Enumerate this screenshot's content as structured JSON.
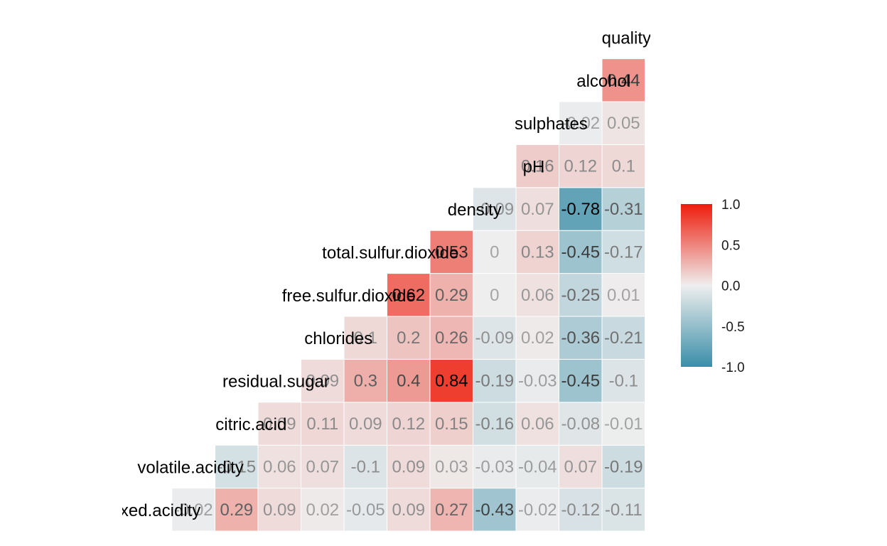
{
  "chart_data": {
    "type": "heatmap",
    "variables": [
      "fixed.acidity",
      "volatile.acidity",
      "citric.acid",
      "residual.sugar",
      "chlorides",
      "free.sulfur.dioxide",
      "total.sulfur.dioxide",
      "density",
      "pH",
      "sulphates",
      "alcohol",
      "quality"
    ],
    "cells": [
      {
        "row": "fixed.acidity",
        "col": "volatile.acidity",
        "value": -0.02,
        "label": "-0.02"
      },
      {
        "row": "fixed.acidity",
        "col": "citric.acid",
        "value": 0.29,
        "label": "0.29"
      },
      {
        "row": "fixed.acidity",
        "col": "residual.sugar",
        "value": 0.09,
        "label": "0.09"
      },
      {
        "row": "fixed.acidity",
        "col": "chlorides",
        "value": 0.02,
        "label": "0.02"
      },
      {
        "row": "fixed.acidity",
        "col": "free.sulfur.dioxide",
        "value": -0.05,
        "label": "-0.05"
      },
      {
        "row": "fixed.acidity",
        "col": "total.sulfur.dioxide",
        "value": 0.09,
        "label": "0.09"
      },
      {
        "row": "fixed.acidity",
        "col": "density",
        "value": 0.27,
        "label": "0.27"
      },
      {
        "row": "fixed.acidity",
        "col": "pH",
        "value": -0.43,
        "label": "-0.43"
      },
      {
        "row": "fixed.acidity",
        "col": "sulphates",
        "value": -0.02,
        "label": "-0.02"
      },
      {
        "row": "fixed.acidity",
        "col": "alcohol",
        "value": -0.12,
        "label": "-0.12"
      },
      {
        "row": "fixed.acidity",
        "col": "quality",
        "value": -0.11,
        "label": "-0.11"
      },
      {
        "row": "volatile.acidity",
        "col": "citric.acid",
        "value": -0.15,
        "label": "-0.15"
      },
      {
        "row": "volatile.acidity",
        "col": "residual.sugar",
        "value": 0.06,
        "label": "0.06"
      },
      {
        "row": "volatile.acidity",
        "col": "chlorides",
        "value": 0.07,
        "label": "0.07"
      },
      {
        "row": "volatile.acidity",
        "col": "free.sulfur.dioxide",
        "value": -0.1,
        "label": "-0.1"
      },
      {
        "row": "volatile.acidity",
        "col": "total.sulfur.dioxide",
        "value": 0.09,
        "label": "0.09"
      },
      {
        "row": "volatile.acidity",
        "col": "density",
        "value": 0.03,
        "label": "0.03"
      },
      {
        "row": "volatile.acidity",
        "col": "pH",
        "value": -0.03,
        "label": "-0.03"
      },
      {
        "row": "volatile.acidity",
        "col": "sulphates",
        "value": -0.04,
        "label": "-0.04"
      },
      {
        "row": "volatile.acidity",
        "col": "alcohol",
        "value": 0.07,
        "label": "0.07"
      },
      {
        "row": "volatile.acidity",
        "col": "quality",
        "value": -0.19,
        "label": "-0.19"
      },
      {
        "row": "citric.acid",
        "col": "residual.sugar",
        "value": 0.09,
        "label": "0.09"
      },
      {
        "row": "citric.acid",
        "col": "chlorides",
        "value": 0.11,
        "label": "0.11"
      },
      {
        "row": "citric.acid",
        "col": "free.sulfur.dioxide",
        "value": 0.09,
        "label": "0.09"
      },
      {
        "row": "citric.acid",
        "col": "total.sulfur.dioxide",
        "value": 0.12,
        "label": "0.12"
      },
      {
        "row": "citric.acid",
        "col": "density",
        "value": 0.15,
        "label": "0.15"
      },
      {
        "row": "citric.acid",
        "col": "pH",
        "value": -0.16,
        "label": "-0.16"
      },
      {
        "row": "citric.acid",
        "col": "sulphates",
        "value": 0.06,
        "label": "0.06"
      },
      {
        "row": "citric.acid",
        "col": "alcohol",
        "value": -0.08,
        "label": "-0.08"
      },
      {
        "row": "citric.acid",
        "col": "quality",
        "value": -0.01,
        "label": "-0.01"
      },
      {
        "row": "residual.sugar",
        "col": "chlorides",
        "value": 0.09,
        "label": "0.09"
      },
      {
        "row": "residual.sugar",
        "col": "free.sulfur.dioxide",
        "value": 0.3,
        "label": "0.3"
      },
      {
        "row": "residual.sugar",
        "col": "total.sulfur.dioxide",
        "value": 0.4,
        "label": "0.4"
      },
      {
        "row": "residual.sugar",
        "col": "density",
        "value": 0.84,
        "label": "0.84"
      },
      {
        "row": "residual.sugar",
        "col": "pH",
        "value": -0.19,
        "label": "-0.19"
      },
      {
        "row": "residual.sugar",
        "col": "sulphates",
        "value": -0.03,
        "label": "-0.03"
      },
      {
        "row": "residual.sugar",
        "col": "alcohol",
        "value": -0.45,
        "label": "-0.45"
      },
      {
        "row": "residual.sugar",
        "col": "quality",
        "value": -0.1,
        "label": "-0.1"
      },
      {
        "row": "chlorides",
        "col": "free.sulfur.dioxide",
        "value": 0.1,
        "label": "0.1"
      },
      {
        "row": "chlorides",
        "col": "total.sulfur.dioxide",
        "value": 0.2,
        "label": "0.2"
      },
      {
        "row": "chlorides",
        "col": "density",
        "value": 0.26,
        "label": "0.26"
      },
      {
        "row": "chlorides",
        "col": "pH",
        "value": -0.09,
        "label": "-0.09"
      },
      {
        "row": "chlorides",
        "col": "sulphates",
        "value": 0.02,
        "label": "0.02"
      },
      {
        "row": "chlorides",
        "col": "alcohol",
        "value": -0.36,
        "label": "-0.36"
      },
      {
        "row": "chlorides",
        "col": "quality",
        "value": -0.21,
        "label": "-0.21"
      },
      {
        "row": "free.sulfur.dioxide",
        "col": "total.sulfur.dioxide",
        "value": 0.62,
        "label": "0.62"
      },
      {
        "row": "free.sulfur.dioxide",
        "col": "density",
        "value": 0.29,
        "label": "0.29"
      },
      {
        "row": "free.sulfur.dioxide",
        "col": "pH",
        "value": 0,
        "label": "0"
      },
      {
        "row": "free.sulfur.dioxide",
        "col": "sulphates",
        "value": 0.06,
        "label": "0.06"
      },
      {
        "row": "free.sulfur.dioxide",
        "col": "alcohol",
        "value": -0.25,
        "label": "-0.25"
      },
      {
        "row": "free.sulfur.dioxide",
        "col": "quality",
        "value": 0.01,
        "label": "0.01"
      },
      {
        "row": "total.sulfur.dioxide",
        "col": "density",
        "value": 0.53,
        "label": "0.53"
      },
      {
        "row": "total.sulfur.dioxide",
        "col": "pH",
        "value": 0,
        "label": "0"
      },
      {
        "row": "total.sulfur.dioxide",
        "col": "sulphates",
        "value": 0.13,
        "label": "0.13"
      },
      {
        "row": "total.sulfur.dioxide",
        "col": "alcohol",
        "value": -0.45,
        "label": "-0.45"
      },
      {
        "row": "total.sulfur.dioxide",
        "col": "quality",
        "value": -0.17,
        "label": "-0.17"
      },
      {
        "row": "density",
        "col": "pH",
        "value": -0.09,
        "label": "-0.09"
      },
      {
        "row": "density",
        "col": "sulphates",
        "value": 0.07,
        "label": "0.07"
      },
      {
        "row": "density",
        "col": "alcohol",
        "value": -0.78,
        "label": "-0.78"
      },
      {
        "row": "density",
        "col": "quality",
        "value": -0.31,
        "label": "-0.31"
      },
      {
        "row": "pH",
        "col": "sulphates",
        "value": 0.16,
        "label": "0.16"
      },
      {
        "row": "pH",
        "col": "alcohol",
        "value": 0.12,
        "label": "0.12"
      },
      {
        "row": "pH",
        "col": "quality",
        "value": 0.1,
        "label": "0.1"
      },
      {
        "row": "sulphates",
        "col": "alcohol",
        "value": -0.02,
        "label": "-0.02"
      },
      {
        "row": "sulphates",
        "col": "quality",
        "value": 0.05,
        "label": "0.05"
      },
      {
        "row": "alcohol",
        "col": "quality",
        "value": 0.44,
        "label": "0.44"
      }
    ],
    "color_scale": {
      "low": "#3a8ea8",
      "mid": "#eeeeee",
      "high": "#ee1c0c",
      "limits": [
        -1,
        1
      ]
    },
    "legend": {
      "position": "right",
      "ticks": [
        "1.0",
        "0.5",
        "0.0",
        "-0.5",
        "-1.0"
      ],
      "tick_values": [
        1,
        0.5,
        0,
        -0.5,
        -1
      ]
    },
    "grid": false,
    "title": "",
    "xlabel": "",
    "ylabel": ""
  }
}
